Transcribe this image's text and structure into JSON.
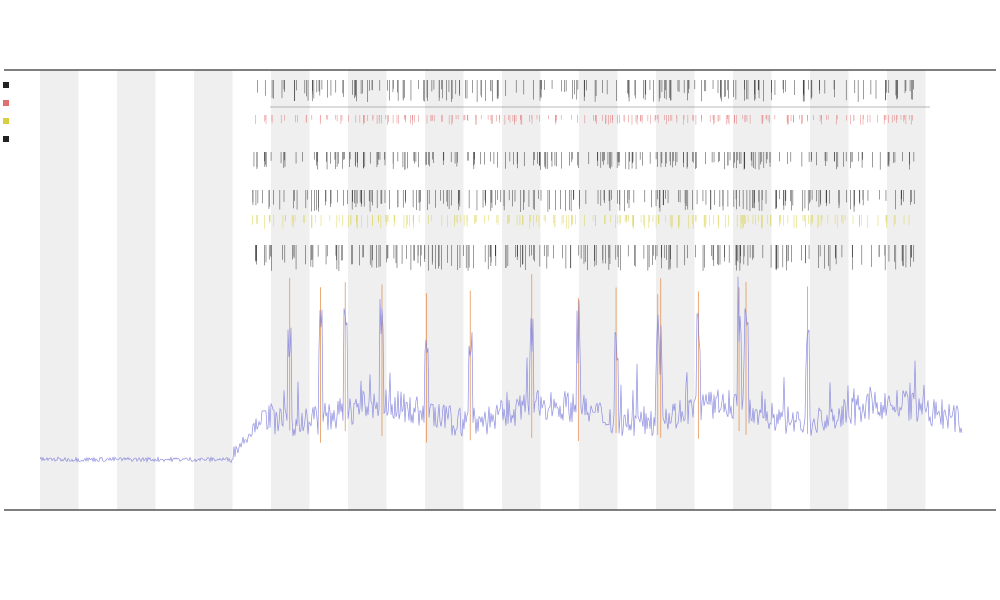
{
  "chart_data": {
    "type": "line",
    "title": "",
    "xlabel": "",
    "ylabel": "",
    "grid": false,
    "legend_position": "top-left",
    "colors": {
      "band": "#efefef",
      "trace": "#7b7bdc",
      "spike": "#e2843a",
      "event_black": "#222222",
      "event_red": "#e07070",
      "event_yellow": "#d8d040",
      "axis": "#333333"
    },
    "x_range": [
      0,
      1000
    ],
    "y_range": [
      0,
      1
    ],
    "shaded_band_count": 12,
    "baseline_segments": [
      {
        "x_start": 0,
        "x_end": 230,
        "level": 0.12
      },
      {
        "x_start": 230,
        "x_end": 1000,
        "level": 0.22
      }
    ],
    "event_rows": [
      "black",
      "red",
      "black",
      "black",
      "yellow",
      "black"
    ],
    "events_x": [
      253,
      262,
      270,
      281,
      293,
      304,
      312,
      318,
      327,
      335,
      342,
      349,
      354,
      361,
      369,
      378,
      386,
      395,
      404,
      411,
      418,
      426,
      433,
      441,
      449,
      457,
      466,
      474,
      483,
      491,
      498,
      507,
      515,
      523,
      532,
      539,
      547,
      555,
      564,
      572,
      579,
      587,
      596,
      604,
      611,
      619,
      628,
      636,
      644,
      652,
      659,
      665,
      672,
      680,
      688,
      697,
      705,
      714,
      722,
      729,
      737,
      744,
      749,
      755,
      763,
      771,
      780,
      788,
      796,
      805,
      813,
      822,
      830,
      839,
      847,
      856,
      864,
      873,
      881,
      890,
      898,
      907,
      915
    ],
    "spike_x": [
      288,
      319,
      344,
      381,
      426,
      470,
      532,
      579,
      617,
      659,
      662,
      700,
      741,
      748,
      810
    ],
    "tick_labels": [],
    "legend": []
  }
}
